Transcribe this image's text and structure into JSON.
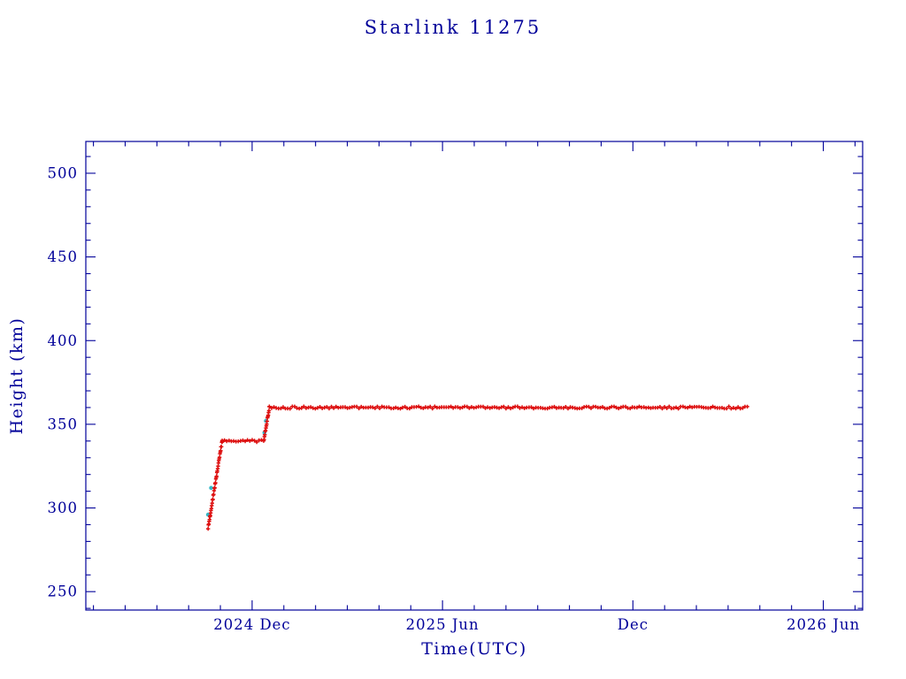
{
  "page": {
    "background": "#ffffff",
    "text_color": "#000099"
  },
  "chart_data": {
    "type": "scatter",
    "title": "Starlink 11275",
    "xlabel": "Time(UTC)",
    "ylabel": "Height (km)",
    "x_unit": "decimal_year",
    "xlim": [
      2024.48,
      2026.52
    ],
    "ylim": [
      239,
      519
    ],
    "grid": false,
    "legend": null,
    "frame_color": "#000099",
    "y_ticks_major": [
      250,
      300,
      350,
      400,
      450,
      500
    ],
    "y_minor_step": 10,
    "x_ticks_major": [
      {
        "label": "2024 Dec",
        "year": 2024.9167
      },
      {
        "label": "2025 Jun",
        "year": 2025.4167
      },
      {
        "label": "Dec",
        "year": 2025.9167
      },
      {
        "label": "2026 Jun",
        "year": 2026.4167
      }
    ],
    "x_minor_step_months": 1,
    "series": [
      {
        "name": "height-secondary-points",
        "color": "#35b8c8",
        "marker": "dot",
        "points": [
          [
            2024.801,
            296
          ],
          [
            2024.809,
            312
          ],
          [
            2024.949,
            345
          ],
          [
            2024.953,
            352
          ]
        ]
      },
      {
        "name": "height-km",
        "color": "#dd1010",
        "marker": "plus",
        "trajectory": [
          [
            2024.801,
            288
          ],
          [
            2024.838,
            340
          ],
          [
            2024.947,
            340
          ],
          [
            2024.962,
            360
          ],
          [
            2026.217,
            360
          ]
        ]
      }
    ]
  }
}
